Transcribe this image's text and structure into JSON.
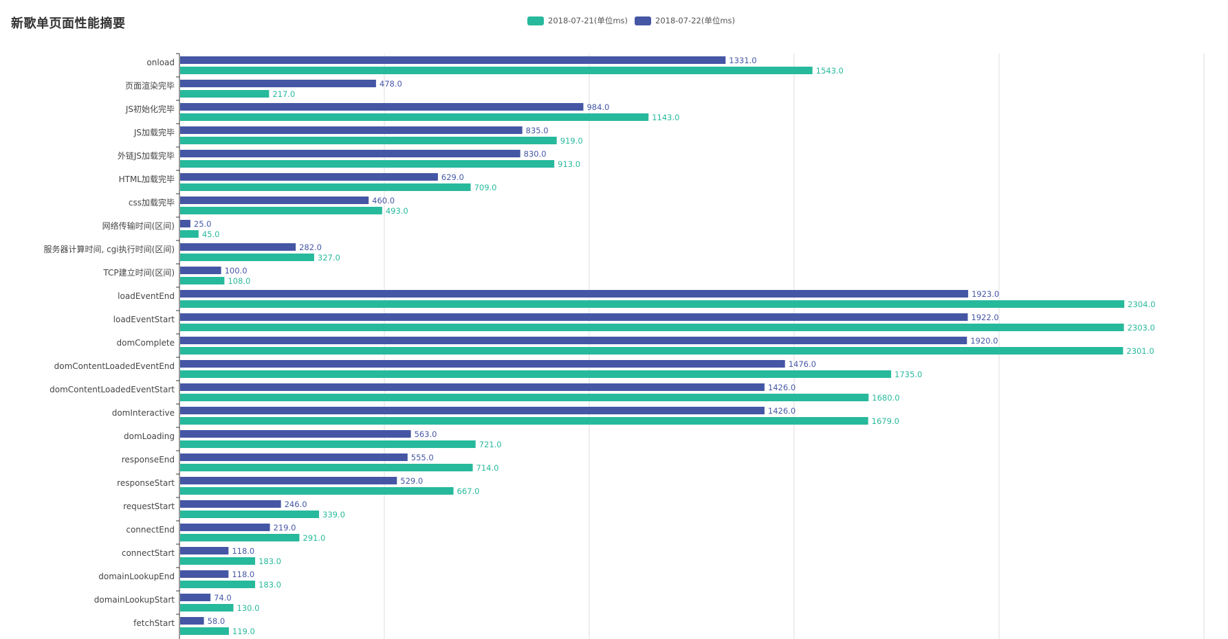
{
  "title": "新歌单页面性能摘要",
  "colors": {
    "series1": "#27b99c",
    "series2": "#4556a5",
    "grid": "#dcdcdc",
    "axis": "#333333",
    "label": "#444444"
  },
  "legend": [
    {
      "label": "2018-07-21(单位ms)",
      "color": "#27b99c"
    },
    {
      "label": "2018-07-22(单位ms)",
      "color": "#4556a5"
    }
  ],
  "chart_data": {
    "type": "bar",
    "orientation": "horizontal",
    "categories": [
      "onload",
      "页面渲染完毕",
      "JS初始化完毕",
      "JS加载完毕",
      "外链JS加载完毕",
      "HTML加载完毕",
      "css加载完毕",
      "网络传输时间(区间)",
      "服务器计算时间, cgi执行时间(区间)",
      "TCP建立时间(区间)",
      "loadEventEnd",
      "loadEventStart",
      "domComplete",
      "domContentLoadedEventEnd",
      "domContentLoadedEventStart",
      "domInteractive",
      "domLoading",
      "responseEnd",
      "responseStart",
      "requestStart",
      "connectEnd",
      "connectStart",
      "domainLookupEnd",
      "domainLookupStart",
      "fetchStart"
    ],
    "series": [
      {
        "name": "2018-07-21(单位ms)",
        "color": "#27b99c",
        "values": [
          1543,
          217,
          1143,
          919,
          913,
          709,
          493,
          45,
          327,
          108,
          2304,
          2303,
          2301,
          1735,
          1680,
          1679,
          721,
          714,
          667,
          339,
          291,
          183,
          183,
          130,
          119
        ],
        "labels": [
          "1543.0",
          "217.0",
          "1143.0",
          "919.0",
          "913.0",
          "709.0",
          "493.0",
          "45.0",
          "327.0",
          "108.0",
          "2304.0",
          "2303.0",
          "2301.0",
          "1735.0",
          "1680.0",
          "1679.0",
          "721.0",
          "714.0",
          "667.0",
          "339.0",
          "291.0",
          "183.0",
          "183.0",
          "130.0",
          "119.0"
        ]
      },
      {
        "name": "2018-07-22(单位ms)",
        "color": "#4556a5",
        "values": [
          1331,
          478,
          984,
          835,
          830,
          629,
          460,
          25,
          282,
          100,
          1923,
          1922,
          1920,
          1476,
          1426,
          1426,
          563,
          555,
          529,
          246,
          219,
          118,
          118,
          74,
          58
        ],
        "labels": [
          "1331.0",
          "478.0",
          "984.0",
          "835.0",
          "830.0",
          "629.0",
          "460.0",
          "25.0",
          "282.0",
          "100.0",
          "1923.0",
          "1922.0",
          "1920.0",
          "1476.0",
          "1426.0",
          "1426.0",
          "563.0",
          "555.0",
          "529.0",
          "246.0",
          "219.0",
          "118.0",
          "118.0",
          "74.0",
          "58.0"
        ]
      }
    ],
    "xlim": [
      0,
      2500
    ],
    "xtick_step": 500,
    "grid": true,
    "legend_position": "top-center"
  }
}
